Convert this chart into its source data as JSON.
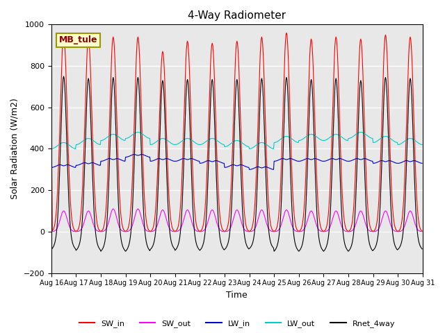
{
  "title": "4-Way Radiometer",
  "xlabel": "Time",
  "ylabel": "Solar Radiation (W/m2)",
  "ylim": [
    -200,
    1000
  ],
  "station_label": "MB_tule",
  "legend": [
    "SW_in",
    "SW_out",
    "LW_in",
    "LW_out",
    "Rnet_4way"
  ],
  "colors": {
    "SW_in": "#ff0000",
    "SW_out": "#ff00ff",
    "LW_in": "#0000cc",
    "LW_out": "#00cccc",
    "Rnet_4way": "#000000"
  },
  "bg_color": "#e8e8e8",
  "start_day": 16,
  "end_day": 31,
  "points_per_day": 48,
  "SW_in_peaks": [
    950,
    930,
    940,
    940,
    870,
    920,
    910,
    920,
    940,
    960,
    930,
    940,
    930,
    950,
    940
  ],
  "SW_out_peaks": [
    100,
    100,
    110,
    110,
    105,
    105,
    105,
    105,
    105,
    105,
    100,
    100,
    100,
    100,
    100
  ],
  "LW_in_base": [
    310,
    320,
    340,
    360,
    340,
    340,
    330,
    310,
    300,
    340,
    340,
    340,
    340,
    330,
    330
  ],
  "LW_out_base": [
    400,
    420,
    440,
    450,
    420,
    420,
    420,
    410,
    400,
    430,
    440,
    440,
    450,
    430,
    420
  ],
  "Rnet_base_night": [
    -100,
    -105,
    -110,
    -110,
    -100,
    -105,
    -105,
    -100,
    -95,
    -110,
    -110,
    -110,
    -110,
    -105,
    -100
  ],
  "Rnet_peak": [
    750,
    740,
    745,
    745,
    730,
    735,
    735,
    735,
    740,
    745,
    735,
    740,
    730,
    745,
    740
  ],
  "tick_labels": [
    "Aug 16",
    "Aug 17",
    "Aug 18",
    "Aug 19",
    "Aug 20",
    "Aug 21",
    "Aug 22",
    "Aug 23",
    "Aug 24",
    "Aug 25",
    "Aug 26",
    "Aug 27",
    "Aug 28",
    "Aug 29",
    "Aug 30",
    "Aug 31"
  ]
}
